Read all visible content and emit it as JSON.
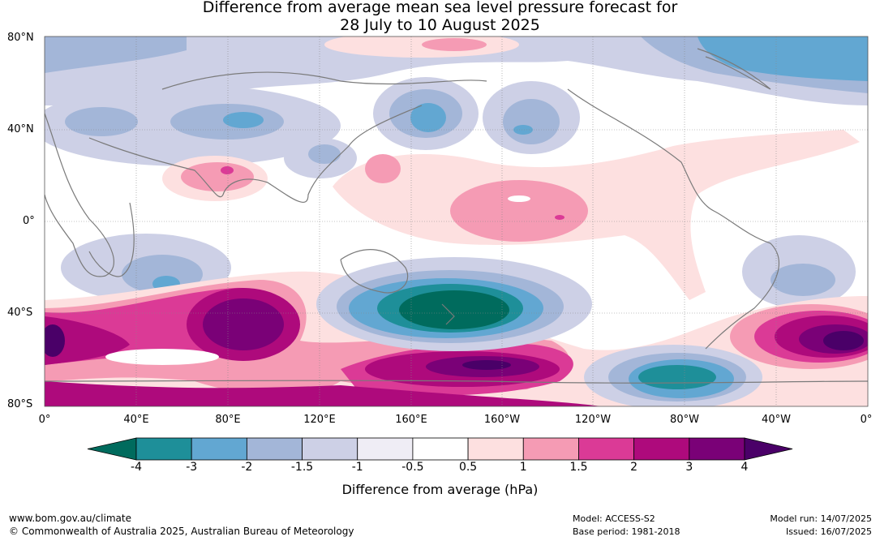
{
  "title_line1": "Difference from average mean sea level pressure forecast for",
  "title_line2": "28 July to 10 August 2025",
  "lat_labels": [
    "80°N",
    "40°N",
    "0°",
    "40°S",
    "80°S"
  ],
  "lon_labels": [
    "0°",
    "40°E",
    "80°E",
    "120°E",
    "160°E",
    "160°W",
    "120°W",
    "80°W",
    "40°W",
    "0°"
  ],
  "colorbar": {
    "ticks": [
      "-4",
      "-3",
      "-2",
      "-1.5",
      "-1",
      "-0.5",
      "0.5",
      "1",
      "1.5",
      "2",
      "3",
      "4"
    ],
    "colors": [
      "#006b5d",
      "#1e8f99",
      "#62a7d2",
      "#a3b6d8",
      "#cdd0e6",
      "#efedf5",
      "#ffffff",
      "#fde0e0",
      "#f59bb4",
      "#db3a96",
      "#ae0a7c",
      "#7a0177",
      "#4a0068"
    ],
    "title": "Difference from average (hPa)"
  },
  "footer": {
    "website": "www.bom.gov.au/climate",
    "copyright": "© Commonwealth of Australia 2025, Australian Bureau of Meteorology",
    "model": "Model: ACCESS-S2",
    "base_period": "Base period: 1981-2018",
    "model_run": "Model run: 14/07/2025",
    "issued": "Issued: 16/07/2025"
  }
}
